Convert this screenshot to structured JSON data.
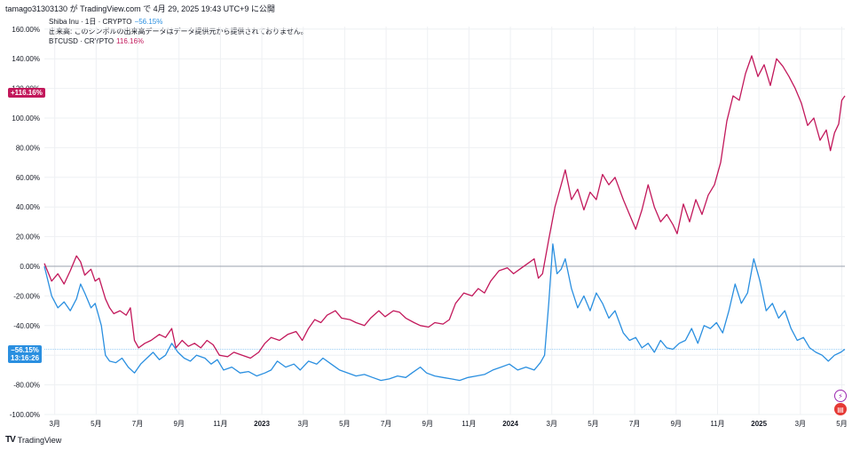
{
  "header": {
    "publish_line": "tamago31303130 が TradingView.com で 4月 29, 2025 19:43 UTC+9 に公開"
  },
  "legend": {
    "shib_label": "Shiba Inu · 1日 · CRYPTO",
    "shib_value": "−56.15%",
    "volume_note": "出来高: このシンボルの出来高データはデータ提供元から提供されておりません。",
    "btc_label": "BTCUSD · CRYPTO",
    "btc_value": "116.16%"
  },
  "badges": {
    "btc_value": "+116.16%",
    "shib_value": "−56.15%",
    "shib_countdown": "13:16:26"
  },
  "brand": {
    "name": "TradingView"
  },
  "icons": {
    "alert": "bolt-icon",
    "flag": "us-flag-icon"
  },
  "colors": {
    "btc": "#c2185b",
    "shib": "#2a8fe0",
    "zero_line": "#9aa0ac",
    "grid": "#eef0f3"
  },
  "chart_data": {
    "type": "line",
    "y_tick_labels": [
      "160.00%",
      "140.00%",
      "120.00%",
      "100.00%",
      "80.00%",
      "60.00%",
      "40.00%",
      "20.00%",
      "0.00%",
      "-20.00%",
      "-40.00%",
      "-60.00%",
      "-80.00%",
      "-100.00%"
    ],
    "y_ticks": [
      160,
      140,
      120,
      100,
      80,
      60,
      40,
      20,
      0,
      -20,
      -40,
      -60,
      -80,
      -100
    ],
    "ylim": [
      -100,
      160
    ],
    "x_tick_labels": [
      {
        "t": 0.15,
        "label": "3月",
        "bold": false
      },
      {
        "t": 2.15,
        "label": "5月",
        "bold": false
      },
      {
        "t": 4.15,
        "label": "7月",
        "bold": false
      },
      {
        "t": 6.15,
        "label": "9月",
        "bold": false
      },
      {
        "t": 8.15,
        "label": "11月",
        "bold": false
      },
      {
        "t": 10.15,
        "label": "2023",
        "bold": true
      },
      {
        "t": 12.15,
        "label": "3月",
        "bold": false
      },
      {
        "t": 14.15,
        "label": "5月",
        "bold": false
      },
      {
        "t": 16.15,
        "label": "7月",
        "bold": false
      },
      {
        "t": 18.15,
        "label": "9月",
        "bold": false
      },
      {
        "t": 20.15,
        "label": "11月",
        "bold": false
      },
      {
        "t": 22.15,
        "label": "2024",
        "bold": true
      },
      {
        "t": 24.15,
        "label": "3月",
        "bold": false
      },
      {
        "t": 26.15,
        "label": "5月",
        "bold": false
      },
      {
        "t": 28.15,
        "label": "7月",
        "bold": false
      },
      {
        "t": 30.15,
        "label": "9月",
        "bold": false
      },
      {
        "t": 32.15,
        "label": "11月",
        "bold": false
      },
      {
        "t": 34.15,
        "label": "2025",
        "bold": true
      },
      {
        "t": 36.15,
        "label": "3月",
        "bold": false
      },
      {
        "t": 38.15,
        "label": "5月",
        "bold": false
      }
    ],
    "xlim": [
      -0.35,
      38.3
    ],
    "series": [
      {
        "name": "BTCUSD · CRYPTO",
        "color": "#c2185b",
        "points": [
          [
            -0.35,
            2
          ],
          [
            0,
            -10
          ],
          [
            0.3,
            -5
          ],
          [
            0.6,
            -12
          ],
          [
            0.9,
            -3
          ],
          [
            1.2,
            7
          ],
          [
            1.4,
            3
          ],
          [
            1.6,
            -6
          ],
          [
            1.9,
            -2
          ],
          [
            2.1,
            -10
          ],
          [
            2.3,
            -8
          ],
          [
            2.6,
            -22
          ],
          [
            2.8,
            -28
          ],
          [
            3.0,
            -32
          ],
          [
            3.3,
            -30
          ],
          [
            3.6,
            -33
          ],
          [
            3.8,
            -28
          ],
          [
            4.0,
            -50
          ],
          [
            4.2,
            -55
          ],
          [
            4.5,
            -52
          ],
          [
            4.8,
            -50
          ],
          [
            5.2,
            -46
          ],
          [
            5.5,
            -48
          ],
          [
            5.8,
            -42
          ],
          [
            6.0,
            -55
          ],
          [
            6.3,
            -50
          ],
          [
            6.6,
            -54
          ],
          [
            6.9,
            -52
          ],
          [
            7.2,
            -55
          ],
          [
            7.5,
            -50
          ],
          [
            7.8,
            -53
          ],
          [
            8.1,
            -60
          ],
          [
            8.5,
            -61
          ],
          [
            8.8,
            -58
          ],
          [
            9.2,
            -60
          ],
          [
            9.6,
            -62
          ],
          [
            10.0,
            -58
          ],
          [
            10.3,
            -52
          ],
          [
            10.6,
            -48
          ],
          [
            11.0,
            -50
          ],
          [
            11.4,
            -46
          ],
          [
            11.8,
            -44
          ],
          [
            12.1,
            -50
          ],
          [
            12.4,
            -42
          ],
          [
            12.7,
            -36
          ],
          [
            13.0,
            -38
          ],
          [
            13.3,
            -33
          ],
          [
            13.7,
            -30
          ],
          [
            14.0,
            -35
          ],
          [
            14.4,
            -36
          ],
          [
            14.7,
            -38
          ],
          [
            15.1,
            -40
          ],
          [
            15.4,
            -35
          ],
          [
            15.8,
            -30
          ],
          [
            16.1,
            -34
          ],
          [
            16.5,
            -30
          ],
          [
            16.8,
            -31
          ],
          [
            17.1,
            -35
          ],
          [
            17.5,
            -38
          ],
          [
            17.8,
            -40
          ],
          [
            18.2,
            -41
          ],
          [
            18.5,
            -38
          ],
          [
            18.9,
            -39
          ],
          [
            19.2,
            -36
          ],
          [
            19.5,
            -25
          ],
          [
            19.9,
            -18
          ],
          [
            20.3,
            -20
          ],
          [
            20.6,
            -15
          ],
          [
            20.9,
            -18
          ],
          [
            21.2,
            -10
          ],
          [
            21.6,
            -3
          ],
          [
            22.0,
            -1
          ],
          [
            22.3,
            -5
          ],
          [
            22.6,
            -2
          ],
          [
            23.0,
            2
          ],
          [
            23.3,
            5
          ],
          [
            23.5,
            -8
          ],
          [
            23.7,
            -5
          ],
          [
            24.0,
            18
          ],
          [
            24.3,
            40
          ],
          [
            24.6,
            55
          ],
          [
            24.8,
            65
          ],
          [
            25.1,
            45
          ],
          [
            25.4,
            52
          ],
          [
            25.7,
            38
          ],
          [
            26.0,
            50
          ],
          [
            26.3,
            45
          ],
          [
            26.6,
            62
          ],
          [
            26.9,
            55
          ],
          [
            27.2,
            60
          ],
          [
            27.6,
            45
          ],
          [
            27.9,
            35
          ],
          [
            28.2,
            25
          ],
          [
            28.5,
            38
          ],
          [
            28.8,
            55
          ],
          [
            29.1,
            40
          ],
          [
            29.4,
            30
          ],
          [
            29.7,
            35
          ],
          [
            30.0,
            28
          ],
          [
            30.2,
            22
          ],
          [
            30.5,
            42
          ],
          [
            30.8,
            30
          ],
          [
            31.1,
            45
          ],
          [
            31.4,
            35
          ],
          [
            31.7,
            48
          ],
          [
            32.0,
            55
          ],
          [
            32.3,
            70
          ],
          [
            32.6,
            98
          ],
          [
            32.9,
            115
          ],
          [
            33.2,
            112
          ],
          [
            33.5,
            130
          ],
          [
            33.8,
            142
          ],
          [
            34.1,
            128
          ],
          [
            34.4,
            136
          ],
          [
            34.7,
            122
          ],
          [
            35.0,
            140
          ],
          [
            35.3,
            135
          ],
          [
            35.6,
            128
          ],
          [
            35.9,
            120
          ],
          [
            36.2,
            110
          ],
          [
            36.5,
            95
          ],
          [
            36.8,
            100
          ],
          [
            37.1,
            85
          ],
          [
            37.4,
            92
          ],
          [
            37.6,
            78
          ],
          [
            37.8,
            90
          ],
          [
            38.0,
            96
          ],
          [
            38.15,
            112
          ],
          [
            38.3,
            115
          ]
        ]
      },
      {
        "name": "Shiba Inu · 1日 · CRYPTO",
        "color": "#2a8fe0",
        "points": [
          [
            -0.35,
            0
          ],
          [
            0,
            -20
          ],
          [
            0.3,
            -28
          ],
          [
            0.6,
            -24
          ],
          [
            0.9,
            -30
          ],
          [
            1.2,
            -22
          ],
          [
            1.4,
            -12
          ],
          [
            1.6,
            -18
          ],
          [
            1.9,
            -28
          ],
          [
            2.1,
            -25
          ],
          [
            2.4,
            -40
          ],
          [
            2.6,
            -60
          ],
          [
            2.8,
            -64
          ],
          [
            3.1,
            -65
          ],
          [
            3.4,
            -62
          ],
          [
            3.7,
            -68
          ],
          [
            4.0,
            -72
          ],
          [
            4.3,
            -66
          ],
          [
            4.6,
            -62
          ],
          [
            4.9,
            -58
          ],
          [
            5.2,
            -63
          ],
          [
            5.5,
            -60
          ],
          [
            5.8,
            -52
          ],
          [
            6.1,
            -58
          ],
          [
            6.4,
            -62
          ],
          [
            6.7,
            -64
          ],
          [
            7.0,
            -60
          ],
          [
            7.4,
            -62
          ],
          [
            7.7,
            -66
          ],
          [
            8.0,
            -63
          ],
          [
            8.3,
            -70
          ],
          [
            8.7,
            -68
          ],
          [
            9.1,
            -72
          ],
          [
            9.5,
            -71
          ],
          [
            9.9,
            -74
          ],
          [
            10.3,
            -72
          ],
          [
            10.6,
            -70
          ],
          [
            10.9,
            -64
          ],
          [
            11.3,
            -68
          ],
          [
            11.7,
            -66
          ],
          [
            12.0,
            -70
          ],
          [
            12.4,
            -64
          ],
          [
            12.8,
            -66
          ],
          [
            13.1,
            -62
          ],
          [
            13.5,
            -66
          ],
          [
            13.9,
            -70
          ],
          [
            14.3,
            -72
          ],
          [
            14.7,
            -74
          ],
          [
            15.1,
            -73
          ],
          [
            15.5,
            -75
          ],
          [
            15.9,
            -77
          ],
          [
            16.3,
            -76
          ],
          [
            16.7,
            -74
          ],
          [
            17.1,
            -75
          ],
          [
            17.4,
            -72
          ],
          [
            17.8,
            -68
          ],
          [
            18.1,
            -72
          ],
          [
            18.5,
            -74
          ],
          [
            18.9,
            -75
          ],
          [
            19.3,
            -76
          ],
          [
            19.7,
            -77
          ],
          [
            20.1,
            -75
          ],
          [
            20.5,
            -74
          ],
          [
            20.9,
            -73
          ],
          [
            21.3,
            -70
          ],
          [
            21.7,
            -68
          ],
          [
            22.1,
            -66
          ],
          [
            22.5,
            -70
          ],
          [
            22.9,
            -68
          ],
          [
            23.3,
            -70
          ],
          [
            23.6,
            -65
          ],
          [
            23.8,
            -60
          ],
          [
            24.0,
            -25
          ],
          [
            24.2,
            15
          ],
          [
            24.4,
            -5
          ],
          [
            24.6,
            -2
          ],
          [
            24.8,
            5
          ],
          [
            25.1,
            -15
          ],
          [
            25.4,
            -28
          ],
          [
            25.7,
            -20
          ],
          [
            26.0,
            -30
          ],
          [
            26.3,
            -18
          ],
          [
            26.6,
            -25
          ],
          [
            26.9,
            -35
          ],
          [
            27.2,
            -30
          ],
          [
            27.6,
            -45
          ],
          [
            27.9,
            -50
          ],
          [
            28.2,
            -48
          ],
          [
            28.5,
            -55
          ],
          [
            28.8,
            -52
          ],
          [
            29.1,
            -58
          ],
          [
            29.4,
            -50
          ],
          [
            29.7,
            -55
          ],
          [
            30.0,
            -56
          ],
          [
            30.3,
            -52
          ],
          [
            30.6,
            -50
          ],
          [
            30.9,
            -42
          ],
          [
            31.2,
            -52
          ],
          [
            31.5,
            -40
          ],
          [
            31.8,
            -42
          ],
          [
            32.1,
            -38
          ],
          [
            32.4,
            -45
          ],
          [
            32.7,
            -30
          ],
          [
            33.0,
            -12
          ],
          [
            33.3,
            -25
          ],
          [
            33.6,
            -18
          ],
          [
            33.9,
            5
          ],
          [
            34.2,
            -10
          ],
          [
            34.5,
            -30
          ],
          [
            34.8,
            -25
          ],
          [
            35.1,
            -35
          ],
          [
            35.4,
            -30
          ],
          [
            35.7,
            -42
          ],
          [
            36.0,
            -50
          ],
          [
            36.3,
            -48
          ],
          [
            36.6,
            -55
          ],
          [
            36.9,
            -58
          ],
          [
            37.2,
            -60
          ],
          [
            37.5,
            -64
          ],
          [
            37.8,
            -60
          ],
          [
            38.1,
            -58
          ],
          [
            38.3,
            -56
          ]
        ]
      }
    ]
  }
}
